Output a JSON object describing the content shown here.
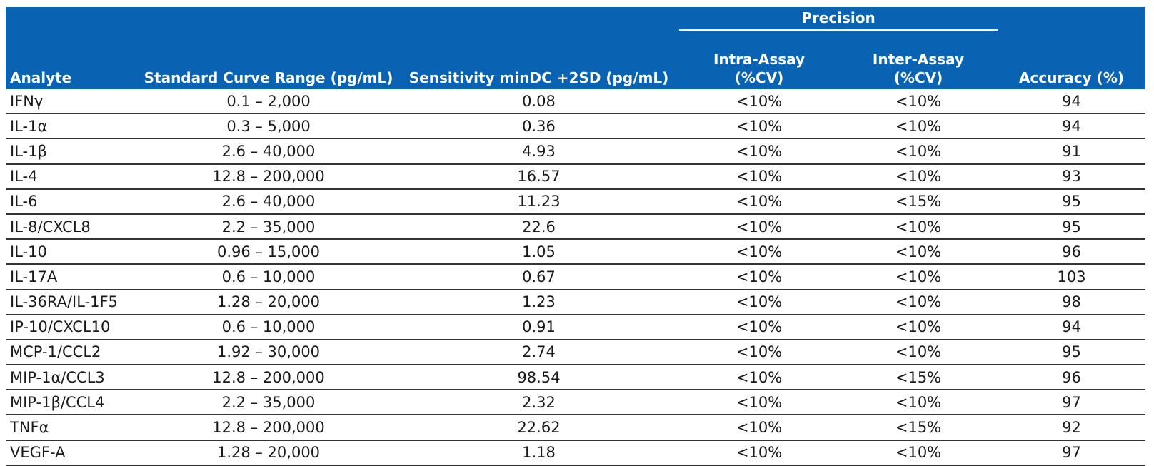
{
  "header": {
    "precision_group": "Precision",
    "columns": [
      {
        "line1": "Analyte",
        "line2": ""
      },
      {
        "line1": "Standard Curve Range (pg/mL)",
        "line2": ""
      },
      {
        "line1": "Sensitivity minDC +2SD (pg/mL)",
        "line2": ""
      },
      {
        "line1": "Intra-Assay",
        "line2": "(%CV)"
      },
      {
        "line1": "Inter-Assay",
        "line2": "(%CV)"
      },
      {
        "line1": "Accuracy (%)",
        "line2": ""
      }
    ]
  },
  "rows": [
    {
      "analyte": "IFNγ",
      "range": "0.1 – 2,000",
      "sensitivity": "0.08",
      "intra": "<10%",
      "inter": "<10%",
      "accuracy": "94"
    },
    {
      "analyte": "IL-1α",
      "range": "0.3 – 5,000",
      "sensitivity": "0.36",
      "intra": "<10%",
      "inter": "<10%",
      "accuracy": "94"
    },
    {
      "analyte": "IL-1β",
      "range": "2.6 – 40,000",
      "sensitivity": "4.93",
      "intra": "<10%",
      "inter": "<10%",
      "accuracy": "91"
    },
    {
      "analyte": "IL-4",
      "range": "12.8 – 200,000",
      "sensitivity": "16.57",
      "intra": "<10%",
      "inter": "<10%",
      "accuracy": "93"
    },
    {
      "analyte": "IL-6",
      "range": "2.6 – 40,000",
      "sensitivity": "11.23",
      "intra": "<10%",
      "inter": "<15%",
      "accuracy": "95"
    },
    {
      "analyte": "IL-8/CXCL8",
      "range": "2.2 – 35,000",
      "sensitivity": "22.6",
      "intra": "<10%",
      "inter": "<10%",
      "accuracy": "95"
    },
    {
      "analyte": "IL-10",
      "range": "0.96 – 15,000",
      "sensitivity": "1.05",
      "intra": "<10%",
      "inter": "<10%",
      "accuracy": "96"
    },
    {
      "analyte": "IL-17A",
      "range": "0.6 – 10,000",
      "sensitivity": "0.67",
      "intra": "<10%",
      "inter": "<10%",
      "accuracy": "103"
    },
    {
      "analyte": "IL-36RA/IL-1F5",
      "range": "1.28 – 20,000",
      "sensitivity": "1.23",
      "intra": "<10%",
      "inter": "<10%",
      "accuracy": "98"
    },
    {
      "analyte": "IP-10/CXCL10",
      "range": "0.6 – 10,000",
      "sensitivity": "0.91",
      "intra": "<10%",
      "inter": "<10%",
      "accuracy": "94"
    },
    {
      "analyte": "MCP-1/CCL2",
      "range": "1.92 – 30,000",
      "sensitivity": "2.74",
      "intra": "<10%",
      "inter": "<10%",
      "accuracy": "95"
    },
    {
      "analyte": "MIP-1α/CCL3",
      "range": "12.8 – 200,000",
      "sensitivity": "98.54",
      "intra": "<10%",
      "inter": "<15%",
      "accuracy": "96"
    },
    {
      "analyte": "MIP-1β/CCL4",
      "range": "2.2 – 35,000",
      "sensitivity": "2.32",
      "intra": "<10%",
      "inter": "<10%",
      "accuracy": "97"
    },
    {
      "analyte": "TNFα",
      "range": "12.8 – 200,000",
      "sensitivity": "22.62",
      "intra": "<10%",
      "inter": "<15%",
      "accuracy": "92"
    },
    {
      "analyte": "VEGF-A",
      "range": "1.28 – 20,000",
      "sensitivity": "1.18",
      "intra": "<10%",
      "inter": "<10%",
      "accuracy": "97"
    }
  ],
  "colors": {
    "header_background": "#0a62b3",
    "header_text": "#ffffff",
    "row_divider": "#333333"
  }
}
